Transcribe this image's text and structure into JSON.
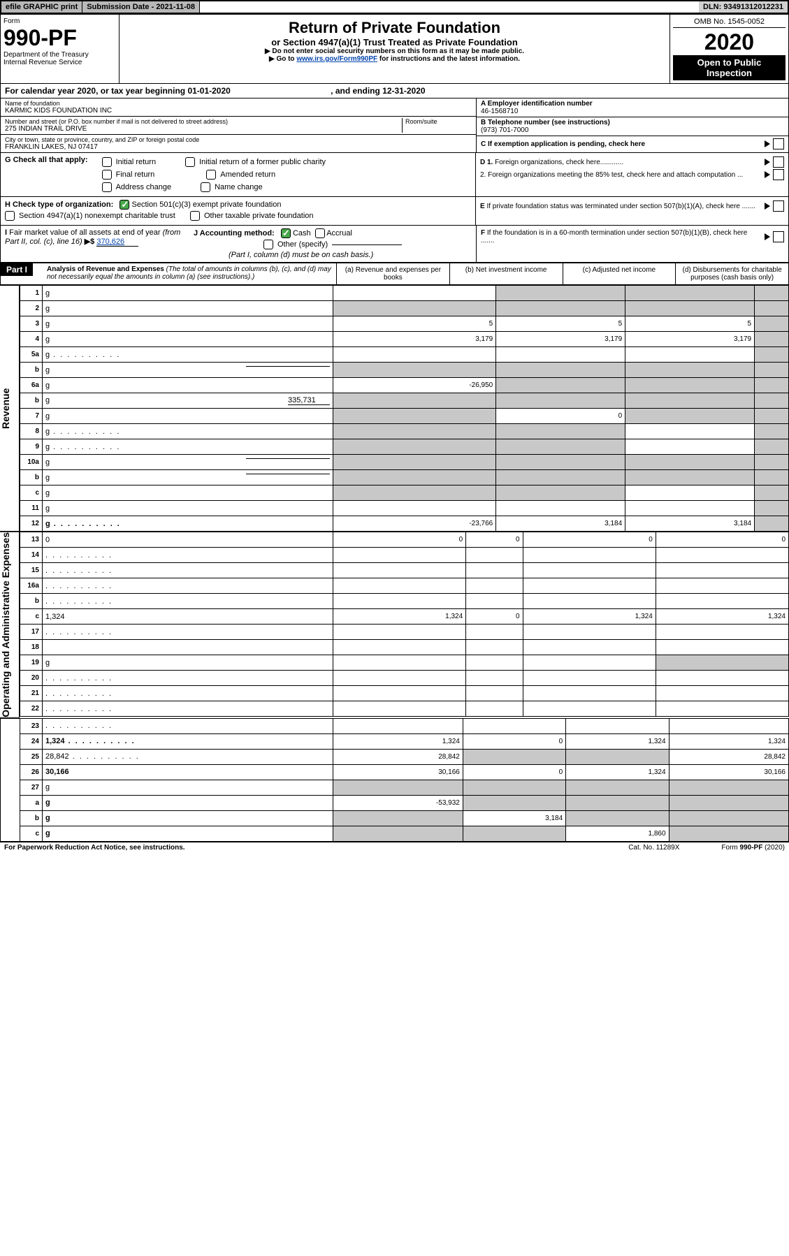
{
  "topbar": {
    "efile": "efile GRAPHIC print",
    "subdate_label": "Submission Date - 2021-11-08",
    "dln": "DLN: 93491312012231"
  },
  "header": {
    "form_label": "Form",
    "form_no": "990-PF",
    "dept": "Department of the Treasury",
    "irs": "Internal Revenue Service",
    "title": "Return of Private Foundation",
    "subtitle": "or Section 4947(a)(1) Trust Treated as Private Foundation",
    "note1": "▶ Do not enter social security numbers on this form as it may be made public.",
    "note2_pre": "▶ Go to ",
    "note2_link": "www.irs.gov/Form990PF",
    "note2_post": " for instructions and the latest information.",
    "omb": "OMB No. 1545-0052",
    "year": "2020",
    "open": "Open to Public Inspection"
  },
  "caldates": {
    "text1": "For calendar year 2020, or tax year beginning 01-01-2020",
    "text2": ", and ending 12-31-2020"
  },
  "info": {
    "name_label": "Name of foundation",
    "name": "KARMIC KIDS FOUNDATION INC",
    "addr_label": "Number and street (or P.O. box number if mail is not delivered to street address)",
    "addr": "275 INDIAN TRAIL DRIVE",
    "room_label": "Room/suite",
    "city_label": "City or town, state or province, country, and ZIP or foreign postal code",
    "city": "FRANKLIN LAKES, NJ  07417",
    "a_label": "A Employer identification number",
    "a_val": "46-1568710",
    "b_label": "B Telephone number (see instructions)",
    "b_val": "(973) 701-7000",
    "c_label": "C If exemption application is pending, check here"
  },
  "sec_g": {
    "label": "G Check all that apply:",
    "opts": [
      "Initial return",
      "Initial return of a former public charity",
      "Final return",
      "Amended return",
      "Address change",
      "Name change"
    ]
  },
  "sec_d": {
    "d1": "D 1. Foreign organizations, check here............",
    "d2": "2. Foreign organizations meeting the 85% test, check here and attach computation ...",
    "e": "E  If private foundation status was terminated under section 507(b)(1)(A), check here .......",
    "f": "F  If the foundation is in a 60-month termination under section 507(b)(1)(B), check here ......."
  },
  "sec_h": {
    "label": "H Check type of organization:",
    "o1": "Section 501(c)(3) exempt private foundation",
    "o2": "Section 4947(a)(1) nonexempt charitable trust",
    "o3": "Other taxable private foundation"
  },
  "sec_i": {
    "label": "I Fair market value of all assets at end of year (from Part II, col. (c), line 16) ",
    "arrow": "▶$",
    "val": "370,626"
  },
  "sec_j": {
    "label": "J Accounting method:",
    "cash": "Cash",
    "accrual": "Accrual",
    "other": "Other (specify)",
    "note": "(Part I, column (d) must be on cash basis.)"
  },
  "part1": {
    "label": "Part I",
    "title": "Analysis of Revenue and Expenses ",
    "note": "(The total of amounts in columns (b), (c), and (d) may not necessarily equal the amounts in column (a) (see instructions).)",
    "cols": {
      "a": "(a)    Revenue and expenses per books",
      "b": "(b)    Net investment income",
      "c": "(c)   Adjusted net income",
      "d": "(d)   Disbursements for charitable purposes (cash basis only)"
    }
  },
  "vlabels": {
    "rev": "Revenue",
    "oae": "Operating and Administrative Expenses"
  },
  "rows": [
    {
      "n": "1",
      "d": "g",
      "a": "",
      "b": "g",
      "c": "g"
    },
    {
      "n": "2",
      "d": "g",
      "a": "g",
      "b": "g",
      "c": "g",
      "ck": true,
      "bold_not": true
    },
    {
      "n": "3",
      "d": "g",
      "a": "5",
      "b": "5",
      "c": "5"
    },
    {
      "n": "4",
      "d": "g",
      "a": "3,179",
      "b": "3,179",
      "c": "3,179"
    },
    {
      "n": "5a",
      "d": "g",
      "a": "",
      "b": "",
      "c": "",
      "dots": true
    },
    {
      "n": "b",
      "d": "g",
      "a": "g",
      "b": "g",
      "c": "g",
      "under": true
    },
    {
      "n": "6a",
      "d": "g",
      "a": "-26,950",
      "b": "g",
      "c": "g"
    },
    {
      "n": "b",
      "d": "g",
      "a": "g",
      "b": "g",
      "c": "g",
      "inline": "335,731"
    },
    {
      "n": "7",
      "d": "g",
      "a": "g",
      "b": "0",
      "c": "g"
    },
    {
      "n": "8",
      "d": "g",
      "a": "g",
      "b": "g",
      "c": "",
      "dots": true
    },
    {
      "n": "9",
      "d": "g",
      "a": "g",
      "b": "g",
      "c": "",
      "dots": true
    },
    {
      "n": "10a",
      "d": "g",
      "a": "g",
      "b": "g",
      "c": "g",
      "under": true
    },
    {
      "n": "b",
      "d": "g",
      "a": "g",
      "b": "g",
      "c": "g",
      "under": true
    },
    {
      "n": "c",
      "d": "g",
      "a": "g",
      "b": "g",
      "c": ""
    },
    {
      "n": "11",
      "d": "g",
      "a": "",
      "b": "",
      "c": ""
    },
    {
      "n": "12",
      "d": "g",
      "a": "-23,766",
      "b": "3,184",
      "c": "3,184",
      "bold": true,
      "dots": true
    },
    {
      "n": "13",
      "d": "0",
      "a": "0",
      "b": "0",
      "c": "0"
    },
    {
      "n": "14",
      "d": "",
      "a": "",
      "b": "",
      "c": "",
      "dots": true
    },
    {
      "n": "15",
      "d": "",
      "a": "",
      "b": "",
      "c": "",
      "dots": true
    },
    {
      "n": "16a",
      "d": "",
      "a": "",
      "b": "",
      "c": "",
      "dots": true
    },
    {
      "n": "b",
      "d": "",
      "a": "",
      "b": "",
      "c": "",
      "dots": true
    },
    {
      "n": "c",
      "d": "1,324",
      "a": "1,324",
      "b": "0",
      "c": "1,324"
    },
    {
      "n": "17",
      "d": "",
      "a": "",
      "b": "",
      "c": "",
      "dots": true
    },
    {
      "n": "18",
      "d": "",
      "a": "",
      "b": "",
      "c": ""
    },
    {
      "n": "19",
      "d": "g",
      "a": "",
      "b": "",
      "c": ""
    },
    {
      "n": "20",
      "d": "",
      "a": "",
      "b": "",
      "c": "",
      "dots": true
    },
    {
      "n": "21",
      "d": "",
      "a": "",
      "b": "",
      "c": "",
      "dots": true
    },
    {
      "n": "22",
      "d": "",
      "a": "",
      "b": "",
      "c": "",
      "dots": true
    },
    {
      "n": "23",
      "d": "",
      "a": "",
      "b": "",
      "c": "",
      "dots": true
    },
    {
      "n": "24",
      "d": "1,324",
      "a": "1,324",
      "b": "0",
      "c": "1,324",
      "bold": true,
      "dots": true
    },
    {
      "n": "25",
      "d": "28,842",
      "a": "28,842",
      "b": "g",
      "c": "g",
      "dots": true
    },
    {
      "n": "26",
      "d": "30,166",
      "a": "30,166",
      "b": "0",
      "c": "1,324",
      "bold": true
    },
    {
      "n": "27",
      "d": "g",
      "a": "g",
      "b": "g",
      "c": "g",
      "nbt": true
    },
    {
      "n": "a",
      "d": "g",
      "a": "-53,932",
      "b": "g",
      "c": "g",
      "bold": true
    },
    {
      "n": "b",
      "d": "g",
      "a": "g",
      "b": "3,184",
      "c": "g",
      "bold": true
    },
    {
      "n": "c",
      "d": "g",
      "a": "g",
      "b": "g",
      "c": "1,860",
      "bold": true
    }
  ],
  "footer": {
    "left": "For Paperwork Reduction Act Notice, see instructions.",
    "mid": "Cat. No. 11289X",
    "right": "Form 990-PF (2020)"
  }
}
